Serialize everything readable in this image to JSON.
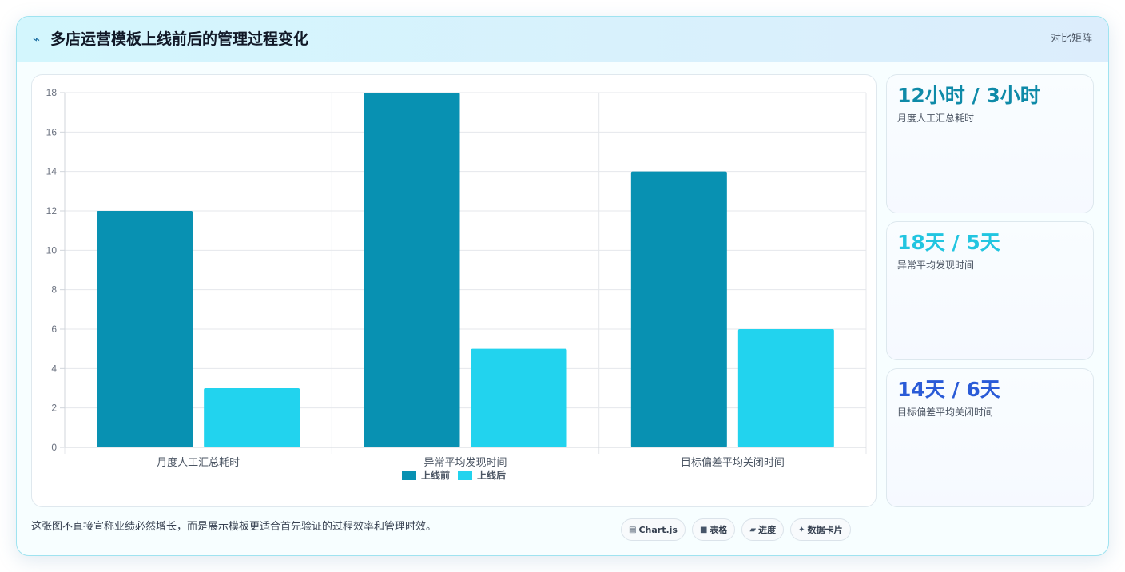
{
  "header": {
    "title": "多店运营模板上线前后的管理过程变化",
    "tag": "对比矩阵",
    "icon": "line-spark-icon"
  },
  "chart_data": {
    "type": "bar",
    "categories": [
      "月度人工汇总耗时",
      "异常平均发现时间",
      "目标偏差平均关闭时间"
    ],
    "series": [
      {
        "name": "上线前",
        "values": [
          12,
          18,
          14
        ],
        "color": "#0891b2"
      },
      {
        "name": "上线后",
        "values": [
          3,
          5,
          6
        ],
        "color": "#22d3ee"
      }
    ],
    "ylim": [
      0,
      18
    ],
    "yticks": [
      "0",
      "2",
      "4",
      "6",
      "8",
      "10",
      "12",
      "14",
      "16",
      "18"
    ],
    "grid": true,
    "legend": "bottom"
  },
  "kpis": [
    {
      "value": "12小时 / 3小时",
      "label": "月度人工汇总耗时",
      "color": "#0e8aa8"
    },
    {
      "value": "18天 / 5天",
      "label": "异常平均发现时间",
      "color": "#22c5e0"
    },
    {
      "value": "14天 / 6天",
      "label": "目标偏差平均关闭时间",
      "color": "#2a5bd7"
    }
  ],
  "footnote": "这张图不直接宣称业绩必然增长，而是展示模板更适合首先验证的过程效率和管理时效。",
  "chips": [
    {
      "icon": "chart-icon",
      "glyph": "▤",
      "label": "Chart.js"
    },
    {
      "icon": "table-icon",
      "glyph": "■",
      "label": "表格"
    },
    {
      "icon": "progress-icon",
      "glyph": "▰",
      "label": "进度"
    },
    {
      "icon": "sparkle-icon",
      "glyph": "✦",
      "label": "数据卡片"
    }
  ]
}
